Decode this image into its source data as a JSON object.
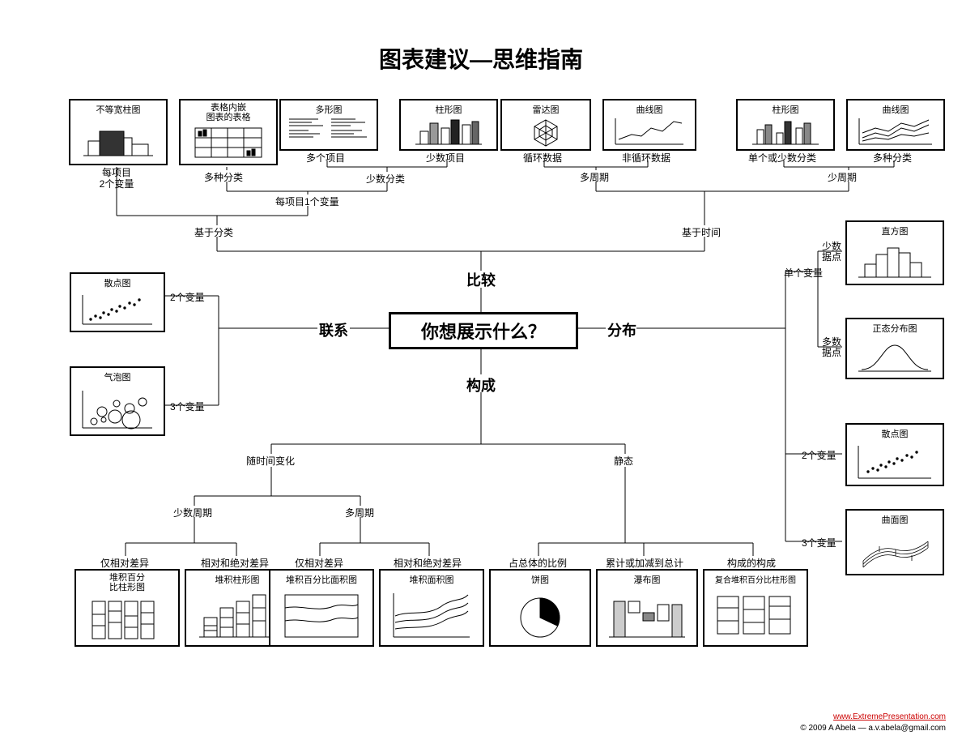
{
  "type": "flowchart",
  "background": "#ffffff",
  "stroke": "#000000",
  "title": "图表建议—思维指南",
  "center": "你想展示什么？",
  "cats": {
    "compare": "比较",
    "rel": "联系",
    "dist": "分布",
    "comp": "构成"
  },
  "labels": {
    "perItem2": "每项目\n2个变量",
    "manyCat": "多种分类",
    "manyItems": "多个项目",
    "fewItems": "少数项目",
    "fewCat": "少数分类",
    "oneVarPerItem": "每项目1个变量",
    "byCat": "基于分类",
    "byTime": "基于时间",
    "cyclic": "循环数据",
    "nonCyclic": "非循环数据",
    "manyPeriod": "多周期",
    "fewPeriod": "少周期",
    "singleFewCat": "单个或少数分类",
    "manyCat2": "多种分类",
    "twoVar": "2个变量",
    "threeVar": "3个变量",
    "oneVar": "单个变量",
    "fewPts": "少数\n据点",
    "manyPts": "多数\n据点",
    "twoVar2": "2个变量",
    "threeVar2": "3个变量",
    "overTime": "随时间变化",
    "static": "静态",
    "fewPeriod2": "少数周期",
    "manyPeriod2": "多周期",
    "relOnly1": "仅相对差异",
    "relAbs1": "相对和绝对差异",
    "relOnly2": "仅相对差异",
    "relAbs2": "相对和绝对差异",
    "share": "占总体的比例",
    "accum": "累计或加减到总计",
    "compOfComp": "构成的构成"
  },
  "cards": {
    "varWidth": "不等宽柱图",
    "tableCharts": "表格内嵌\n图表的表格",
    "manyBar": "多形图",
    "column": "柱形图",
    "radar": "雷达图",
    "line1": "曲线图",
    "column2": "柱形图",
    "line2": "曲线图",
    "scatter": "散点图",
    "bubble": "气泡图",
    "histogram": "直方图",
    "normal": "正态分布图",
    "scatter2": "散点图",
    "surface": "曲面图",
    "stack100Col": "堆积百分\n比柱形图",
    "stackCol": "堆积柱形图",
    "stack100Area": "堆积百分比面积图",
    "stackArea": "堆积面积图",
    "pie": "饼图",
    "waterfall": "瀑布图",
    "stackBar100": "复合堆积百分比柱形图"
  },
  "footer": {
    "url": "www.ExtremePresentation.com",
    "copy": "© 2009  A Abela — a.v.abela@gmail.com"
  }
}
